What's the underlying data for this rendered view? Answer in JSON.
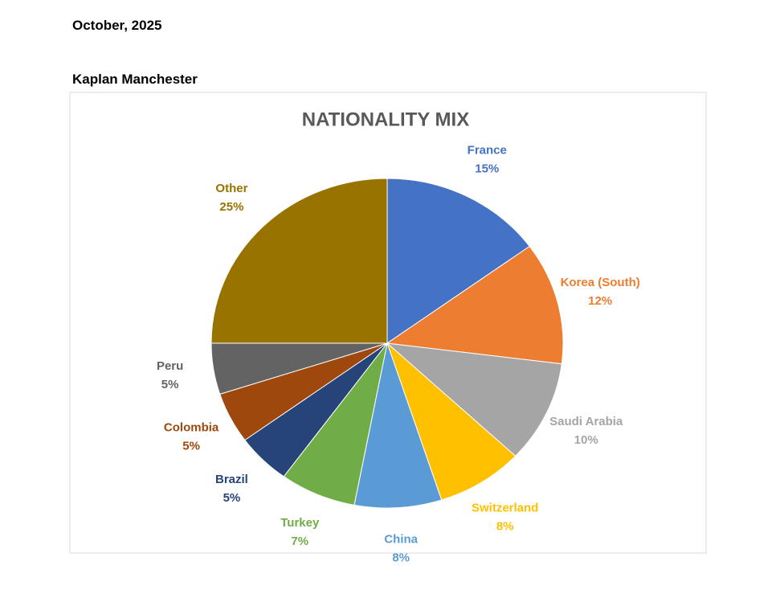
{
  "header": {
    "date": "October, 2025",
    "subtitle": "Kaplan Manchester"
  },
  "chart_data": {
    "type": "pie",
    "title": "NATIONALITY MIX",
    "categories": [
      "France",
      "Korea (South)",
      "Saudi Arabia",
      "Switzerland",
      "China",
      "Turkey",
      "Brazil",
      "Colombia",
      "Peru",
      "Other"
    ],
    "values": [
      15,
      12,
      10,
      8,
      8,
      7,
      5,
      5,
      5,
      25
    ],
    "value_labels": [
      "15%",
      "12%",
      "10%",
      "8%",
      "8%",
      "7%",
      "5%",
      "5%",
      "5%",
      "25%"
    ],
    "colors": [
      "#4472c4",
      "#ed7d31",
      "#a5a5a5",
      "#ffc000",
      "#5b9bd5",
      "#70ad47",
      "#264478",
      "#9e480e",
      "#636363",
      "#997300"
    ]
  }
}
